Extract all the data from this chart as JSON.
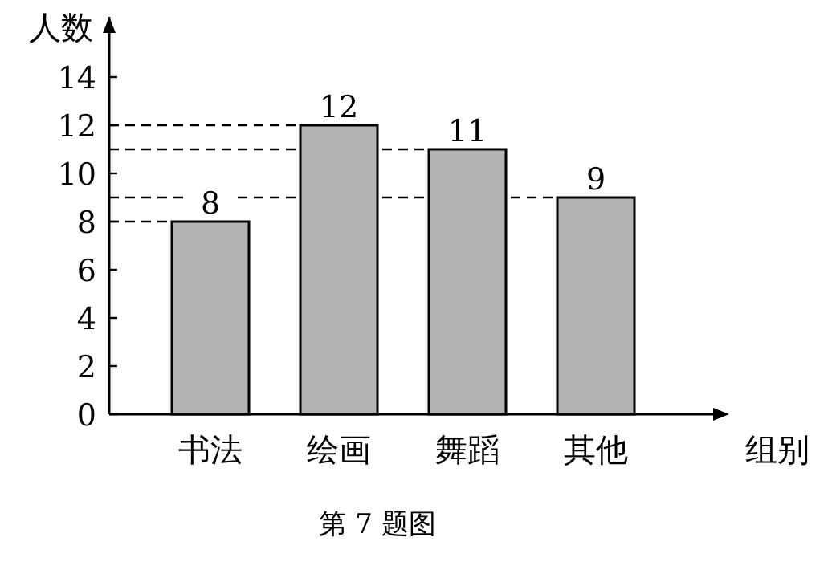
{
  "chart_data": {
    "type": "bar",
    "title": "第 7 题图",
    "xlabel": "组别",
    "ylabel": "人数",
    "categories": [
      "书法",
      "绘画",
      "舞蹈",
      "其他"
    ],
    "values": [
      8,
      12,
      11,
      9
    ],
    "color": "#b4b4b4",
    "data_labels": true,
    "ylim": [
      0,
      16.5
    ],
    "yticks": [
      0,
      2,
      4,
      6,
      8,
      10,
      12,
      14
    ],
    "ref_lines": [
      {
        "axis": "y",
        "value": 8,
        "label": null,
        "line_style": "dashed",
        "color": "#000000"
      },
      {
        "axis": "y",
        "value": 9,
        "label": null,
        "line_style": "dashed",
        "color": "#000000"
      },
      {
        "axis": "y",
        "value": 11,
        "label": null,
        "line_style": "dashed",
        "color": "#000000"
      },
      {
        "axis": "y",
        "value": 12,
        "label": null,
        "line_style": "dashed",
        "color": "#000000"
      }
    ]
  }
}
